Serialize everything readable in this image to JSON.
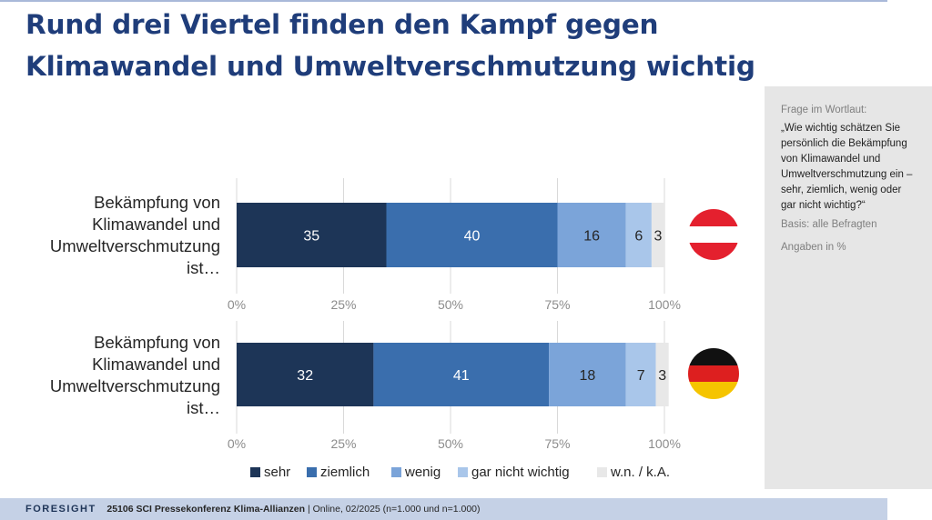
{
  "title": {
    "line1": "Rund drei Viertel finden den Kampf gegen",
    "line2": "Klimawandel und Umweltverschmutzung wichtig"
  },
  "sidebar": {
    "label": "Frage im Wortlaut:",
    "question": "„Wie wichtig schätzen Sie persönlich die Bekämpfung von Klimawandel und Umweltverschmutzung ein – sehr, ziemlich, wenig oder gar nicht wichtig?“",
    "basis": "Basis: alle Befragten",
    "unit": "Angaben in %"
  },
  "footer": {
    "brand": "FORESIGHT",
    "project": "25106 SCI Pressekonferenz Klima-Allianzen",
    "details": " | Online, 02/2025 (n=1.000 und n=1.000)"
  },
  "chart_data": {
    "type": "bar",
    "orientation": "horizontal",
    "stacked": true,
    "xlim": [
      0,
      100
    ],
    "ticks": [
      "0%",
      "25%",
      "50%",
      "75%",
      "100%"
    ],
    "grid": true,
    "legend_position": "bottom",
    "series": [
      {
        "name": "sehr",
        "color": "#1d3557"
      },
      {
        "name": "ziemlich",
        "color": "#3a6ead"
      },
      {
        "name": "wenig",
        "color": "#7ba4d9"
      },
      {
        "name": "gar nicht wichtig",
        "color": "#a9c6ea"
      },
      {
        "name": "w.n. / k.A.",
        "color": "#e8e8e8"
      }
    ],
    "rows": [
      {
        "label_lines": [
          "Bekämpfung von",
          "Klimawandel und",
          "Umweltverschmutzung",
          "ist…"
        ],
        "flag": "austria-flag-icon",
        "flag_colors": [
          "#e4202e",
          "#ffffff",
          "#e4202e"
        ],
        "values": [
          35,
          40,
          16,
          6,
          3
        ]
      },
      {
        "label_lines": [
          "Bekämpfung von",
          "Klimawandel und",
          "Umweltverschmutzung",
          "ist…"
        ],
        "flag": "germany-flag-icon",
        "flag_colors": [
          "#111111",
          "#dd1f1f",
          "#f5c400"
        ],
        "values": [
          32,
          41,
          18,
          7,
          3
        ]
      }
    ]
  }
}
